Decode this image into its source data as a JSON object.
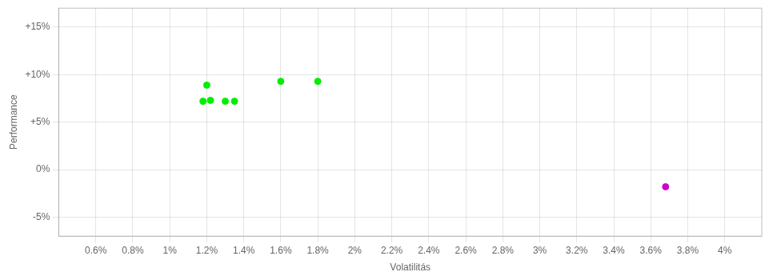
{
  "chart_data": {
    "type": "scatter",
    "x_label": "Volatilitás",
    "y_label": "Performance",
    "series": [
      {
        "color": "#00ee00",
        "x": [
          0.012,
          0.0122,
          0.0118,
          0.013,
          0.0135,
          0.016,
          0.018
        ],
        "values": [
          0.089,
          0.073,
          0.072,
          0.072,
          0.072,
          0.093,
          0.093
        ]
      },
      {
        "color": "#cc00cc",
        "x": [
          0.0368
        ],
        "values": [
          -0.018
        ]
      }
    ],
    "xlim": [
      0.004,
      0.042
    ],
    "xticks": [
      {
        "value": 0.006,
        "label": "0.6%"
      },
      {
        "value": 0.008,
        "label": "0.8%"
      },
      {
        "value": 0.01,
        "label": "1%"
      },
      {
        "value": 0.012,
        "label": "1.2%"
      },
      {
        "value": 0.014,
        "label": "1.4%"
      },
      {
        "value": 0.016,
        "label": "1.6%"
      },
      {
        "value": 0.018,
        "label": "1.8%"
      },
      {
        "value": 0.02,
        "label": "2%"
      },
      {
        "value": 0.022,
        "label": "2.2%"
      },
      {
        "value": 0.024,
        "label": "2.4%"
      },
      {
        "value": 0.026,
        "label": "2.6%"
      },
      {
        "value": 0.028,
        "label": "2.8%"
      },
      {
        "value": 0.03,
        "label": "3%"
      },
      {
        "value": 0.032,
        "label": "3.2%"
      },
      {
        "value": 0.034,
        "label": "3.4%"
      },
      {
        "value": 0.036,
        "label": "3.6%"
      },
      {
        "value": 0.038,
        "label": "3.8%"
      },
      {
        "value": 0.04,
        "label": "4%"
      }
    ],
    "ylim": [
      -0.07,
      0.17
    ],
    "yticks": [
      {
        "value": -0.05,
        "label": "-5%"
      },
      {
        "value": 0.0,
        "label": "0%"
      },
      {
        "value": 0.05,
        "label": "+5%"
      },
      {
        "value": 0.1,
        "label": "+10%"
      },
      {
        "value": 0.15,
        "label": "+15%"
      }
    ],
    "grid": true
  }
}
